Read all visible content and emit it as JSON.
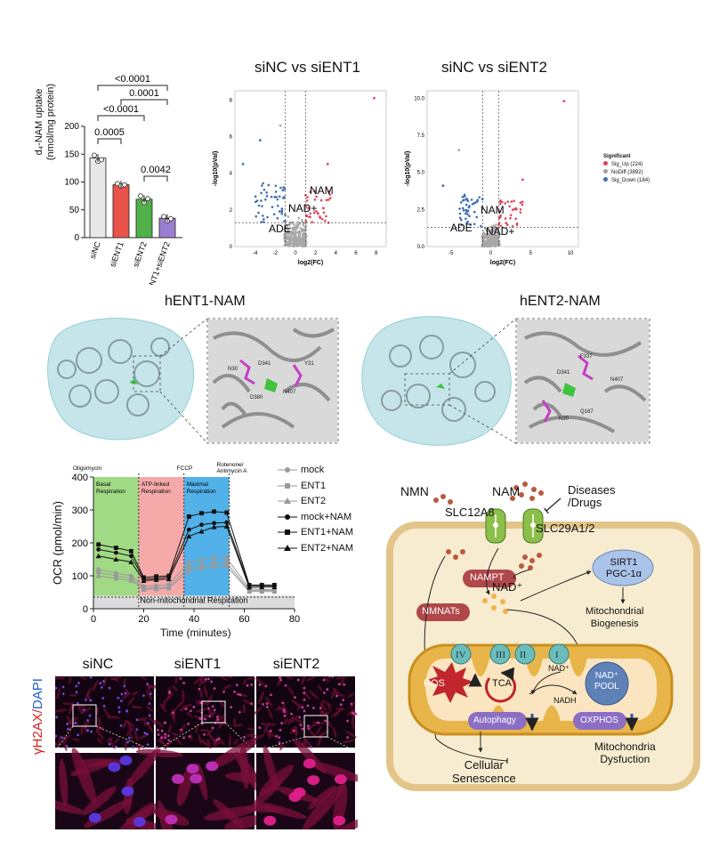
{
  "bar": {
    "ylabel_line1": "d₄-NAM uptake",
    "ylabel_line2": "(nmol/mg protein)",
    "yticks": [
      "0",
      "50",
      "100",
      "150",
      "200"
    ],
    "sig_labels": [
      "<0.0001",
      "0.0001",
      "<0.0001",
      "0.0005",
      "0.0042"
    ]
  },
  "volcano1": {
    "title": "siNC vs siENT1",
    "xlabel": "log2(FC)",
    "ylabel": "-log10(pVal)",
    "xticks": [
      "-4",
      "-2",
      "0",
      "2",
      "4",
      "6",
      "8"
    ],
    "yticks": [
      "0",
      "2",
      "4",
      "6",
      "8"
    ],
    "ann": [
      "NAM",
      "NAD+",
      "ADE"
    ]
  },
  "volcano2": {
    "title": "siNC vs siENT2",
    "xlabel": "log2(FC)",
    "ylabel": "-log10(pVal)",
    "xticks": [
      "-5",
      "0",
      "5",
      "10"
    ],
    "yticks": [
      "0.0",
      "2.5",
      "5.0",
      "7.5",
      "10.0"
    ],
    "ann": [
      "NAM",
      "ADE",
      "NAD+"
    ]
  },
  "legend": {
    "title": "Significant",
    "items": [
      {
        "label": "Sig_Up (224)",
        "color": "#e0455a"
      },
      {
        "label": "NoDiff (3892)",
        "color": "#a0a0a0"
      },
      {
        "label": "Sig_Down (184)",
        "color": "#3d6fb0"
      }
    ]
  },
  "struct": {
    "title1": "hENT1-NAM",
    "title2": "hENT2-NAM",
    "res1": [
      "N30",
      "D341",
      "D380",
      "N407",
      "Y31"
    ],
    "res2": [
      "D341",
      "F337",
      "N407",
      "Q167",
      "N30"
    ]
  },
  "ocr": {
    "ylabel": "OCR (pmol/min)",
    "xlabel": "Time (minutes)",
    "xticks": [
      "0",
      "20",
      "40",
      "60",
      "80"
    ],
    "yticks": [
      "0",
      "100",
      "200",
      "300",
      "400"
    ],
    "injections": [
      "Oligomycin",
      "FCCP",
      "Rotenone/\nAntimycin A"
    ],
    "phase_labels": [
      "Basal\nRespiration",
      "ATP-linked\nRespiration",
      "Maximal\nRespiration"
    ],
    "nonmito": "Non-mitochondrial Respiration",
    "legend": [
      "mock",
      "ENT1",
      "ENT2",
      "mock+NAM",
      "ENT1+NAM",
      "ENT2+NAM"
    ]
  },
  "chart_data": {
    "type": "bar",
    "categories": [
      "siNC",
      "siENT1",
      "siENT2",
      "siENT1+siENT2"
    ],
    "values": [
      143,
      95,
      69,
      35
    ],
    "colors": [
      "#e8e8e8",
      "#e8534a",
      "#52b04a",
      "#9b7fd0"
    ],
    "ylabel": "d₄-NAM uptake (nmol/mg protein)",
    "ylim": [
      0,
      200
    ]
  },
  "ocr_data": {
    "type": "line",
    "x": [
      2,
      9,
      15,
      20,
      25,
      30,
      38,
      43,
      48,
      53,
      62,
      67,
      72
    ],
    "series": [
      {
        "name": "mock",
        "values": [
          120,
          108,
          100,
          68,
          70,
          74,
          140,
          148,
          155,
          155,
          60,
          58,
          58
        ]
      },
      {
        "name": "ENT1",
        "values": [
          110,
          100,
          92,
          62,
          64,
          66,
          125,
          132,
          138,
          140,
          55,
          55,
          56
        ]
      },
      {
        "name": "ENT2",
        "values": [
          100,
          92,
          86,
          58,
          60,
          62,
          115,
          122,
          128,
          130,
          52,
          52,
          52
        ]
      },
      {
        "name": "mock+NAM",
        "values": [
          180,
          170,
          160,
          90,
          92,
          96,
          240,
          255,
          260,
          262,
          70,
          70,
          70
        ]
      },
      {
        "name": "ENT1+NAM",
        "values": [
          195,
          185,
          175,
          95,
          98,
          100,
          280,
          290,
          295,
          292,
          72,
          72,
          72
        ]
      },
      {
        "name": "ENT2+NAM",
        "values": [
          160,
          150,
          142,
          85,
          88,
          90,
          220,
          235,
          248,
          250,
          65,
          66,
          66
        ]
      }
    ],
    "xlim": [
      0,
      80
    ],
    "ylim": [
      0,
      400
    ]
  },
  "diagram": {
    "nmn": "NMN",
    "nam": "NAM",
    "diseases": "Diseases\n/Drugs",
    "slc12": "SLC12A8",
    "slc29": "SLC29A1/2",
    "nampt": "NAMPT",
    "nadplus": "NAD⁺",
    "sirt": "SIRT1\nPGC-1α",
    "mitobio": "Mitochondrial\nBiogenesis",
    "nmnat": "NMNATs",
    "complexes": [
      "IV",
      "III",
      "II",
      "I"
    ],
    "ros": "ROS",
    "tca": "TCA",
    "nadsmall": "NAD⁺",
    "nadh": "NADH",
    "pool": "NAD⁺\nPOOL",
    "autophagy": "Autophagy",
    "oxphos": "OXPHOS",
    "dysf": "Mitochondria\nDysfuction",
    "senes": "Cellular\nSenescence"
  },
  "micro": {
    "cols": [
      "siNC",
      "siENT1",
      "siENT2"
    ],
    "ylabel_red": "γH2AX",
    "ylabel_sep": "/",
    "ylabel_blue": "DAPI"
  }
}
